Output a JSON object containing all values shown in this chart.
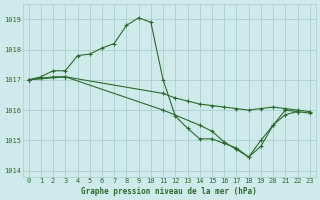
{
  "title": "Graphe pression niveau de la mer (hPa)",
  "bg_color": "#ceeaea",
  "line_color": "#2d6a2d",
  "grid_color": "#aacece",
  "xlim": [
    -0.5,
    23.5
  ],
  "ylim": [
    1013.8,
    1019.5
  ],
  "yticks": [
    1014,
    1015,
    1016,
    1017,
    1018,
    1019
  ],
  "xticks": [
    0,
    1,
    2,
    3,
    4,
    5,
    6,
    7,
    8,
    9,
    10,
    11,
    12,
    13,
    14,
    15,
    16,
    17,
    18,
    19,
    20,
    21,
    22,
    23
  ],
  "line1_x": [
    0,
    1,
    2,
    3,
    4,
    5,
    6,
    7,
    8,
    9,
    10,
    11,
    12,
    13,
    14,
    15,
    16,
    17,
    18,
    19,
    20,
    21,
    22
  ],
  "line1_y": [
    1017.0,
    1017.1,
    1017.3,
    1017.3,
    1017.8,
    1017.85,
    1018.05,
    1018.2,
    1018.8,
    1019.05,
    1018.9,
    1017.0,
    1015.8,
    1015.4,
    1015.05,
    1015.05,
    1014.9,
    1014.75,
    1014.45,
    1014.8,
    1015.5,
    1016.0,
    1015.95
  ],
  "line2_x": [
    0,
    1,
    2,
    3,
    11,
    12,
    13,
    14,
    15,
    16,
    17,
    18,
    19,
    20,
    21,
    22,
    23
  ],
  "line2_y": [
    1017.0,
    1017.05,
    1017.1,
    1017.1,
    1016.55,
    1016.4,
    1016.3,
    1016.2,
    1016.15,
    1016.1,
    1016.05,
    1016.0,
    1016.05,
    1016.1,
    1016.05,
    1016.0,
    1015.95
  ],
  "line3_x": [
    0,
    3,
    11,
    14,
    15,
    16,
    17,
    18,
    19,
    20,
    21,
    22,
    23
  ],
  "line3_y": [
    1017.0,
    1017.1,
    1016.0,
    1015.5,
    1015.3,
    1014.95,
    1014.7,
    1014.45,
    1015.0,
    1015.5,
    1015.85,
    1015.95,
    1015.9
  ]
}
